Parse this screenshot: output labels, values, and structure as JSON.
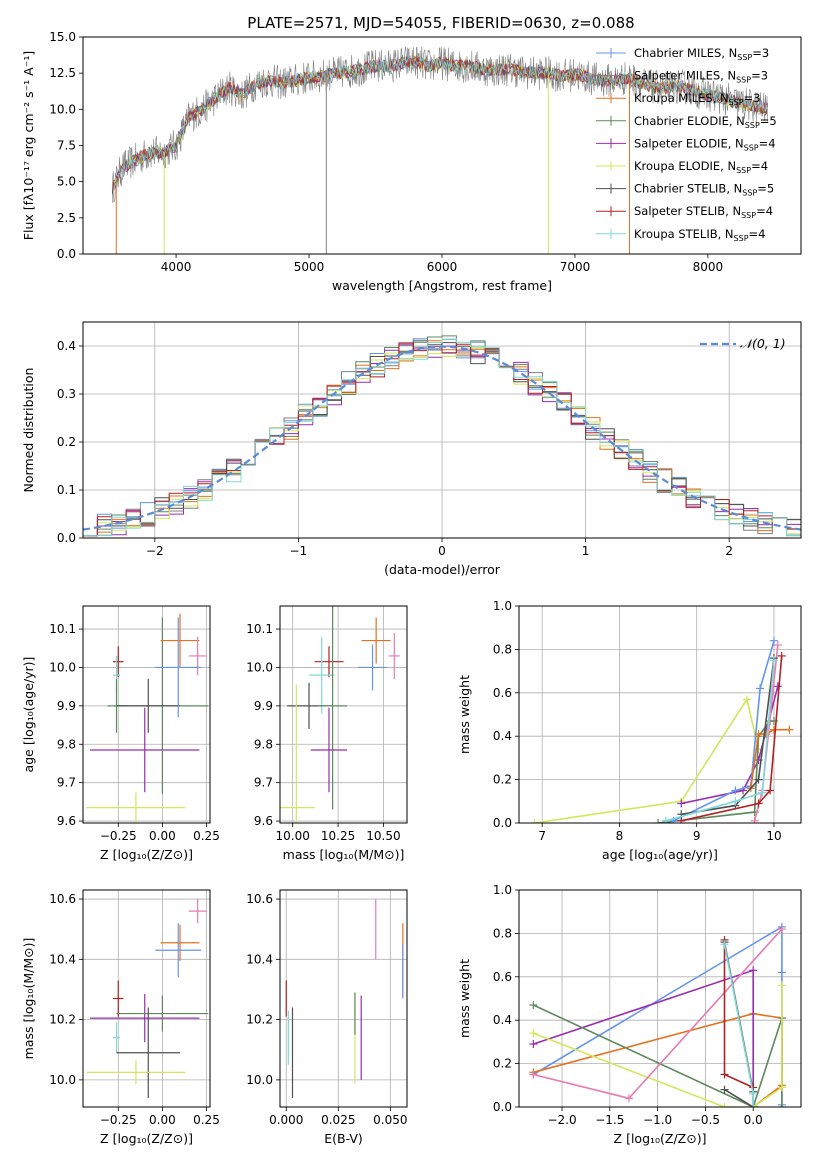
{
  "figure_title": "PLATE=2571, MJD=54055, FIBERID=0630, z=0.088",
  "colors": {
    "blue": "#6495ed",
    "orange": "#e6701e",
    "green": "#5c8a5c",
    "purple": "#9a2cb0",
    "yellowgreen": "#d4e65a",
    "gray": "#808080",
    "darkred": "#b22222",
    "cyan": "#80d8d8",
    "pink": "#e87ab0",
    "darkgray": "#505050"
  },
  "chart_data": [
    {
      "id": "spectrum",
      "type": "line",
      "xlabel": "wavelength [Angstrom, rest frame]",
      "ylabel": "Flux [fλ10⁻¹⁷ erg cm⁻² s⁻¹ A⁻¹]",
      "xlim": [
        3300,
        8700
      ],
      "ylim": [
        0,
        15
      ],
      "xticks": [
        4000,
        5000,
        6000,
        7000,
        8000
      ],
      "yticks": [
        0.0,
        2.5,
        5.0,
        7.5,
        10.0,
        12.5,
        15.0
      ],
      "data_curve": {
        "x": [
          3520,
          3600,
          3700,
          3800,
          3900,
          4000,
          4100,
          4200,
          4300,
          4400,
          4500,
          4600,
          4700,
          4800,
          4900,
          5000,
          5100,
          5200,
          5300,
          5400,
          5500,
          5600,
          5700,
          5800,
          5900,
          6000,
          6100,
          6200,
          6300,
          6400,
          6500,
          6600,
          6700,
          6800,
          6900,
          7000,
          7100,
          7200,
          7300,
          7400,
          7500,
          7600,
          7700,
          7800,
          7900,
          8000,
          8100,
          8200,
          8300,
          8450
        ],
        "y": [
          4.5,
          6.0,
          6.5,
          7.0,
          7.0,
          7.5,
          9.5,
          10.0,
          10.8,
          11.5,
          11.0,
          11.8,
          12.0,
          11.8,
          12.0,
          12.2,
          12.3,
          12.5,
          12.6,
          12.8,
          13.0,
          13.0,
          13.2,
          13.3,
          13.0,
          13.2,
          13.0,
          13.0,
          12.8,
          12.7,
          12.8,
          12.6,
          12.5,
          12.5,
          12.3,
          12.4,
          12.2,
          12.0,
          12.0,
          12.2,
          11.8,
          11.5,
          11.5,
          11.6,
          11.3,
          11.0,
          10.8,
          10.5,
          10.3,
          10.0
        ]
      },
      "series": [
        {
          "name": "Chabrier MILES, N_SSP=3",
          "color": "#6495ed"
        },
        {
          "name": "Salpeter MILES, N_SSP=3",
          "color": "#808080"
        },
        {
          "name": "Kroupa MILES, N_SSP=3",
          "color": "#e6701e"
        },
        {
          "name": "Chabrier ELODIE, N_SSP=5",
          "color": "#5c8a5c"
        },
        {
          "name": "Salpeter ELODIE, N_SSP=4",
          "color": "#9a2cb0"
        },
        {
          "name": "Kroupa ELODIE, N_SSP=4",
          "color": "#d4e65a"
        },
        {
          "name": "Chabrier STELIB, N_SSP=5",
          "color": "#505050"
        },
        {
          "name": "Salpeter STELIB, N_SSP=4",
          "color": "#b22222"
        },
        {
          "name": "Kroupa STELIB, N_SSP=4",
          "color": "#80d8d8"
        }
      ],
      "legend_entries": [
        {
          "pre": "Chabrier MILES, N",
          "sub": "SSP",
          "post": "=3"
        },
        {
          "pre": "Salpeter MILES, N",
          "sub": "SSP",
          "post": "=3"
        },
        {
          "pre": "Kroupa MILES, N",
          "sub": "SSP",
          "post": "=3"
        },
        {
          "pre": "Chabrier ELODIE, N",
          "sub": "SSP",
          "post": "=5"
        },
        {
          "pre": "Salpeter ELODIE, N",
          "sub": "SSP",
          "post": "=4"
        },
        {
          "pre": "Kroupa ELODIE, N",
          "sub": "SSP",
          "post": "=4"
        },
        {
          "pre": "Chabrier STELIB, N",
          "sub": "SSP",
          "post": "=5"
        },
        {
          "pre": "Salpeter STELIB, N",
          "sub": "SSP",
          "post": "=4"
        },
        {
          "pre": "Kroupa STELIB, N",
          "sub": "SSP",
          "post": "=4"
        }
      ],
      "legend_placement": "upper-right"
    },
    {
      "id": "residuals",
      "type": "line",
      "xlabel": "(data-model)/error",
      "ylabel": "Normed distribution",
      "xlim": [
        -2.5,
        2.5
      ],
      "ylim": [
        0,
        0.45
      ],
      "xticks": [
        -2,
        -1,
        0,
        1,
        2
      ],
      "yticks": [
        0.0,
        0.1,
        0.2,
        0.3,
        0.4
      ],
      "grid": true,
      "reference_curve": {
        "name": "N(0,1)",
        "legend_label": "𝒩(0, 1)",
        "style": "dashed",
        "mean": 0,
        "sigma": 1
      },
      "hist_bin_width": 0.1,
      "legend_placement": "upper-right"
    },
    {
      "id": "age-vs-Z",
      "type": "scatter",
      "xlabel": "Z [log₁₀(Z/Z⊙)]",
      "ylabel": "age  [log₁₀(age/yr)]",
      "xlim": [
        -0.45,
        0.27
      ],
      "ylim": [
        9.595,
        10.16
      ],
      "xticks": [
        -0.25,
        0.0,
        0.25
      ],
      "xticklabels": [
        "−0.25",
        "0.00",
        "0.25"
      ],
      "yticks": [
        9.6,
        9.7,
        9.8,
        9.9,
        10.0,
        10.1
      ],
      "grid": true,
      "points": [
        {
          "x": -0.25,
          "y": 10.015,
          "xerr": 0.03,
          "yerr": 0.04,
          "color": "#b22222"
        },
        {
          "x": -0.26,
          "y": 9.98,
          "xerr": 0.02,
          "yerr": 0.05,
          "color": "#80d8d8"
        },
        {
          "x": -0.26,
          "y": 9.9,
          "xerr": 0.05,
          "yerr": 0.07,
          "color": "#5c8a5c"
        },
        {
          "x": -0.1,
          "y": 9.785,
          "xerr": 0.31,
          "yerr": 0.11,
          "color": "#9a2cb0"
        },
        {
          "x": 0.0,
          "y": 9.9,
          "xerr": 0.26,
          "yerr": 0.23,
          "color": "#5c8a5c"
        },
        {
          "x": -0.08,
          "y": 9.9,
          "xerr": 0.18,
          "yerr": 0.07,
          "color": "#505050"
        },
        {
          "x": -0.15,
          "y": 9.635,
          "xerr": 0.28,
          "yerr": 0.04,
          "color": "#d4e65a"
        },
        {
          "x": 0.1,
          "y": 10.07,
          "xerr": 0.11,
          "yerr": 0.07,
          "color": "#e6701e"
        },
        {
          "x": 0.2,
          "y": 10.03,
          "xerr": 0.05,
          "yerr": 0.05,
          "color": "#e87ab0"
        },
        {
          "x": 0.09,
          "y": 10.0,
          "xerr": 0.13,
          "yerr": 0.13,
          "color": "#6495ed"
        }
      ]
    },
    {
      "id": "age-vs-mass",
      "type": "scatter",
      "xlabel": "mass [log₁₀(M/M⊙)]",
      "ylabel": "",
      "xlim": [
        9.93,
        10.63
      ],
      "ylim": [
        9.595,
        10.16
      ],
      "xticks": [
        10.0,
        10.25,
        10.5
      ],
      "xticklabels": [
        "10.00",
        "10.25",
        "10.50"
      ],
      "yticks": [
        9.6,
        9.7,
        9.8,
        9.9,
        10.0,
        10.1
      ],
      "grid": true,
      "points": [
        {
          "x": 10.2,
          "y": 10.015,
          "xerr": 0.08,
          "yerr": 0.04,
          "color": "#b22222"
        },
        {
          "x": 10.16,
          "y": 9.98,
          "xerr": 0.07,
          "yerr": 0.1,
          "color": "#80d8d8"
        },
        {
          "x": 10.09,
          "y": 9.9,
          "xerr": 0.12,
          "yerr": 0.06,
          "color": "#505050"
        },
        {
          "x": 10.22,
          "y": 9.9,
          "xerr": 0.08,
          "yerr": 0.27,
          "color": "#5c8a5c"
        },
        {
          "x": 10.2,
          "y": 9.785,
          "xerr": 0.1,
          "yerr": 0.11,
          "color": "#9a2cb0"
        },
        {
          "x": 10.02,
          "y": 9.635,
          "xerr": 0.1,
          "yerr": 0.32,
          "color": "#d4e65a"
        },
        {
          "x": 10.46,
          "y": 10.07,
          "xerr": 0.08,
          "yerr": 0.06,
          "color": "#e6701e"
        },
        {
          "x": 10.56,
          "y": 10.03,
          "xerr": 0.03,
          "yerr": 0.06,
          "color": "#e87ab0"
        },
        {
          "x": 10.44,
          "y": 10.0,
          "xerr": 0.08,
          "yerr": 0.06,
          "color": "#6495ed"
        }
      ]
    },
    {
      "id": "mass-weight-vs-age",
      "type": "line",
      "xlabel": "age  [log₁₀(age/yr)]",
      "ylabel": "mass weight",
      "xlim": [
        6.7,
        10.35
      ],
      "ylim": [
        0.0,
        1.0
      ],
      "xticks": [
        7,
        8,
        9,
        10
      ],
      "yticks": [
        0.0,
        0.2,
        0.4,
        0.6,
        0.8,
        1.0
      ],
      "grid": true,
      "series": [
        {
          "color": "#d4e65a",
          "x": [
            6.9,
            8.8,
            9.65,
            9.8
          ],
          "y": [
            0.0,
            0.1,
            0.57,
            0.34
          ]
        },
        {
          "color": "#9a2cb0",
          "x": [
            8.8,
            9.6,
            9.8,
            10.05
          ],
          "y": [
            0.09,
            0.15,
            0.29,
            0.63
          ]
        },
        {
          "color": "#5c8a5c",
          "x": [
            8.5,
            9.75,
            9.8,
            9.95,
            10.0
          ],
          "y": [
            0.0,
            0.05,
            0.4,
            0.47,
            0.47
          ]
        },
        {
          "color": "#6495ed",
          "x": [
            8.7,
            9.5,
            9.7,
            9.82,
            10.0
          ],
          "y": [
            0.01,
            0.15,
            0.17,
            0.62,
            0.84
          ]
        },
        {
          "color": "#e6701e",
          "x": [
            9.7,
            9.8,
            9.9,
            10.0,
            10.2
          ],
          "y": [
            0.16,
            0.41,
            0.41,
            0.43,
            0.43
          ]
        },
        {
          "color": "#e87ab0",
          "x": [
            9.75,
            9.85,
            10.05
          ],
          "y": [
            0.01,
            0.15,
            0.82
          ]
        },
        {
          "color": "#b22222",
          "x": [
            8.8,
            9.8,
            9.95,
            10.1
          ],
          "y": [
            0.01,
            0.09,
            0.15,
            0.77
          ]
        },
        {
          "color": "#505050",
          "x": [
            8.8,
            9.5,
            9.8,
            10.0
          ],
          "y": [
            0.04,
            0.08,
            0.2,
            0.76
          ]
        },
        {
          "color": "#80d8d8",
          "x": [
            8.6,
            9.5,
            9.85,
            10.0
          ],
          "y": [
            0.01,
            0.1,
            0.14,
            0.75
          ]
        }
      ]
    },
    {
      "id": "mass-vs-Z",
      "type": "scatter",
      "xlabel": "Z [log₁₀(Z/Z⊙)]",
      "ylabel": "mass [log₁₀(M/M⊙)]",
      "xlim": [
        -0.45,
        0.27
      ],
      "ylim": [
        9.91,
        10.63
      ],
      "xticks": [
        -0.25,
        0.0,
        0.25
      ],
      "xticklabels": [
        "−0.25",
        "0.00",
        "0.25"
      ],
      "yticks": [
        10.0,
        10.2,
        10.4,
        10.6
      ],
      "grid": true,
      "points": [
        {
          "x": -0.25,
          "y": 10.27,
          "xerr": 0.03,
          "yerr": 0.06,
          "color": "#b22222"
        },
        {
          "x": -0.26,
          "y": 10.14,
          "xerr": 0.02,
          "yerr": 0.05,
          "color": "#80d8d8"
        },
        {
          "x": -0.1,
          "y": 10.205,
          "xerr": 0.31,
          "yerr": 0.08,
          "color": "#9a2cb0"
        },
        {
          "x": 0.0,
          "y": 10.22,
          "xerr": 0.26,
          "yerr": 0.06,
          "color": "#5c8a5c"
        },
        {
          "x": -0.08,
          "y": 10.09,
          "xerr": 0.18,
          "yerr": 0.15,
          "color": "#505050"
        },
        {
          "x": -0.15,
          "y": 10.025,
          "xerr": 0.28,
          "yerr": 0.04,
          "color": "#d4e65a"
        },
        {
          "x": 0.1,
          "y": 10.455,
          "xerr": 0.11,
          "yerr": 0.06,
          "color": "#e6701e"
        },
        {
          "x": 0.2,
          "y": 10.56,
          "xerr": 0.05,
          "yerr": 0.04,
          "color": "#e87ab0"
        },
        {
          "x": 0.09,
          "y": 10.43,
          "xerr": 0.13,
          "yerr": 0.09,
          "color": "#6495ed"
        }
      ]
    },
    {
      "id": "mass-vs-EBV",
      "type": "scatter",
      "xlabel": "E(B-V)",
      "ylabel": "",
      "xlim": [
        -0.003,
        0.058
      ],
      "ylim": [
        9.91,
        10.63
      ],
      "xticks": [
        0.0,
        0.025,
        0.05
      ],
      "xticklabels": [
        "0.000",
        "0.025",
        "0.050"
      ],
      "yticks": [
        10.0,
        10.2,
        10.4,
        10.6
      ],
      "grid": true,
      "points": [
        {
          "x": 0.0,
          "y": 10.27,
          "xerr": 0,
          "yerr": 0.06,
          "color": "#b22222"
        },
        {
          "x": 0.001,
          "y": 10.14,
          "xerr": 0,
          "yerr": 0.09,
          "color": "#80d8d8"
        },
        {
          "x": 0.003,
          "y": 10.09,
          "xerr": 0,
          "yerr": 0.15,
          "color": "#505050"
        },
        {
          "x": 0.033,
          "y": 10.14,
          "xerr": 0,
          "yerr": 0.15,
          "color": "#d4e65a"
        },
        {
          "x": 0.033,
          "y": 10.22,
          "xerr": 0,
          "yerr": 0.07,
          "color": "#5c8a5c"
        },
        {
          "x": 0.036,
          "y": 10.14,
          "xerr": 0,
          "yerr": 0.14,
          "color": "#9a2cb0"
        },
        {
          "x": 0.043,
          "y": 10.5,
          "xerr": 0,
          "yerr": 0.1,
          "color": "#e87ab0"
        },
        {
          "x": 0.056,
          "y": 10.4,
          "xerr": 0,
          "yerr": 0.12,
          "color": "#e6701e"
        },
        {
          "x": 0.056,
          "y": 10.36,
          "xerr": 0,
          "yerr": 0.09,
          "color": "#6495ed"
        }
      ]
    },
    {
      "id": "mass-weight-vs-Z",
      "type": "line",
      "xlabel": "Z [log₁₀(Z/Z⊙)]",
      "ylabel": "mass weight",
      "xlim": [
        -2.45,
        0.5
      ],
      "ylim": [
        0.0,
        1.0
      ],
      "xticks": [
        -2.0,
        -1.5,
        -1.0,
        -0.5,
        0.0
      ],
      "xticklabels": [
        "−2.0",
        "−1.5",
        "−1.0",
        "−0.5",
        "0.0"
      ],
      "yticks": [
        0.0,
        0.2,
        0.4,
        0.6,
        0.8,
        1.0
      ],
      "grid": true,
      "series": [
        {
          "color": "#6495ed",
          "x": [
            -2.3,
            0.3,
            0.3,
            0.3
          ],
          "y": [
            0.15,
            0.83,
            0.62,
            0.01
          ]
        },
        {
          "color": "#e6701e",
          "x": [
            -2.3,
            0.0,
            0.3,
            0.3,
            0.0
          ],
          "y": [
            0.16,
            0.43,
            0.41,
            0.1,
            0.0
          ]
        },
        {
          "color": "#9a2cb0",
          "x": [
            -2.3,
            0.0,
            0.0
          ],
          "y": [
            0.29,
            0.63,
            0.0
          ]
        },
        {
          "color": "#5c8a5c",
          "x": [
            -2.3,
            0.0,
            0.3,
            0.3
          ],
          "y": [
            0.47,
            0.0,
            0.41,
            0.0
          ]
        },
        {
          "color": "#d4e65a",
          "x": [
            -2.3,
            -0.3,
            0.0,
            0.3,
            0.3
          ],
          "y": [
            0.34,
            0.0,
            0.0,
            0.09,
            0.56
          ]
        },
        {
          "color": "#e87ab0",
          "x": [
            -2.3,
            -1.3,
            0.3
          ],
          "y": [
            0.15,
            0.04,
            0.82
          ]
        },
        {
          "color": "#b22222",
          "x": [
            -0.3,
            -0.3,
            0.0
          ],
          "y": [
            0.77,
            0.15,
            0.09
          ]
        },
        {
          "color": "#505050",
          "x": [
            -0.3,
            0.0,
            0.0,
            -0.3
          ],
          "y": [
            0.76,
            0.07,
            0.0,
            0.08
          ]
        },
        {
          "color": "#80d8d8",
          "x": [
            -0.3,
            0.0,
            0.0
          ],
          "y": [
            0.75,
            0.06,
            0.0
          ]
        }
      ]
    }
  ]
}
